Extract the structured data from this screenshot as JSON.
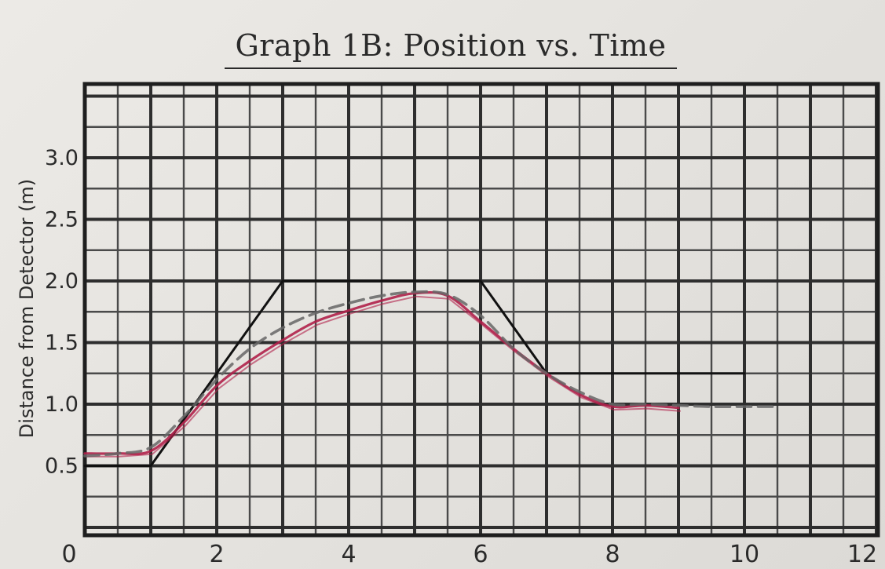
{
  "chart_data": {
    "type": "line",
    "title": "Graph 1B: Position vs. Time",
    "xlabel": "",
    "ylabel": "Distance from Detector (m)",
    "xlim": [
      0,
      12
    ],
    "ylim": [
      0,
      3.5
    ],
    "x_ticks": [
      {
        "value": 0,
        "label": "0"
      },
      {
        "value": 2,
        "label": "2"
      },
      {
        "value": 4,
        "label": "4"
      },
      {
        "value": 6,
        "label": "6"
      },
      {
        "value": 8,
        "label": "8"
      },
      {
        "value": 10,
        "label": "10"
      },
      {
        "value": 12,
        "label": "12"
      }
    ],
    "y_ticks": [
      {
        "value": 0.5,
        "label": "0.5"
      },
      {
        "value": 1.0,
        "label": "1.0"
      },
      {
        "value": 1.5,
        "label": "1.5"
      },
      {
        "value": 2.0,
        "label": "2.0"
      },
      {
        "value": 2.5,
        "label": "2.5"
      },
      {
        "value": 3.0,
        "label": "3.0"
      }
    ],
    "grid": true,
    "grid_minor_step": 0.5,
    "grid_major_step": 1,
    "legend": "none",
    "series": [
      {
        "style": "solid-black",
        "color": "#111111",
        "x": [
          0,
          1,
          3,
          6,
          7,
          10
        ],
        "y": [
          0.5,
          0.5,
          2.0,
          2.0,
          1.25,
          1.25
        ]
      },
      {
        "style": "red-pen",
        "color": "#b0204a",
        "x": [
          0,
          0.5,
          1,
          1.5,
          2,
          2.5,
          3,
          3.5,
          4,
          4.5,
          5,
          5.5,
          6,
          6.5,
          7,
          7.5,
          8,
          8.5,
          9
        ],
        "y": [
          0.6,
          0.6,
          0.62,
          0.85,
          1.15,
          1.35,
          1.52,
          1.67,
          1.76,
          1.84,
          1.9,
          1.88,
          1.67,
          1.45,
          1.25,
          1.08,
          0.98,
          0.99,
          0.97
        ]
      },
      {
        "style": "gray-dashed",
        "color": "#666666",
        "x": [
          0,
          0.5,
          1,
          1.5,
          2,
          2.5,
          3,
          3.5,
          4,
          4.5,
          5,
          5.5,
          6,
          6.5,
          7,
          7.5,
          8,
          8.5,
          9,
          9.5,
          10,
          10.5
        ],
        "y": [
          0.58,
          0.6,
          0.65,
          0.9,
          1.2,
          1.45,
          1.62,
          1.74,
          1.82,
          1.88,
          1.91,
          1.89,
          1.72,
          1.45,
          1.25,
          1.1,
          1.0,
          1.0,
          0.99,
          0.98,
          0.98,
          0.98
        ]
      }
    ]
  }
}
